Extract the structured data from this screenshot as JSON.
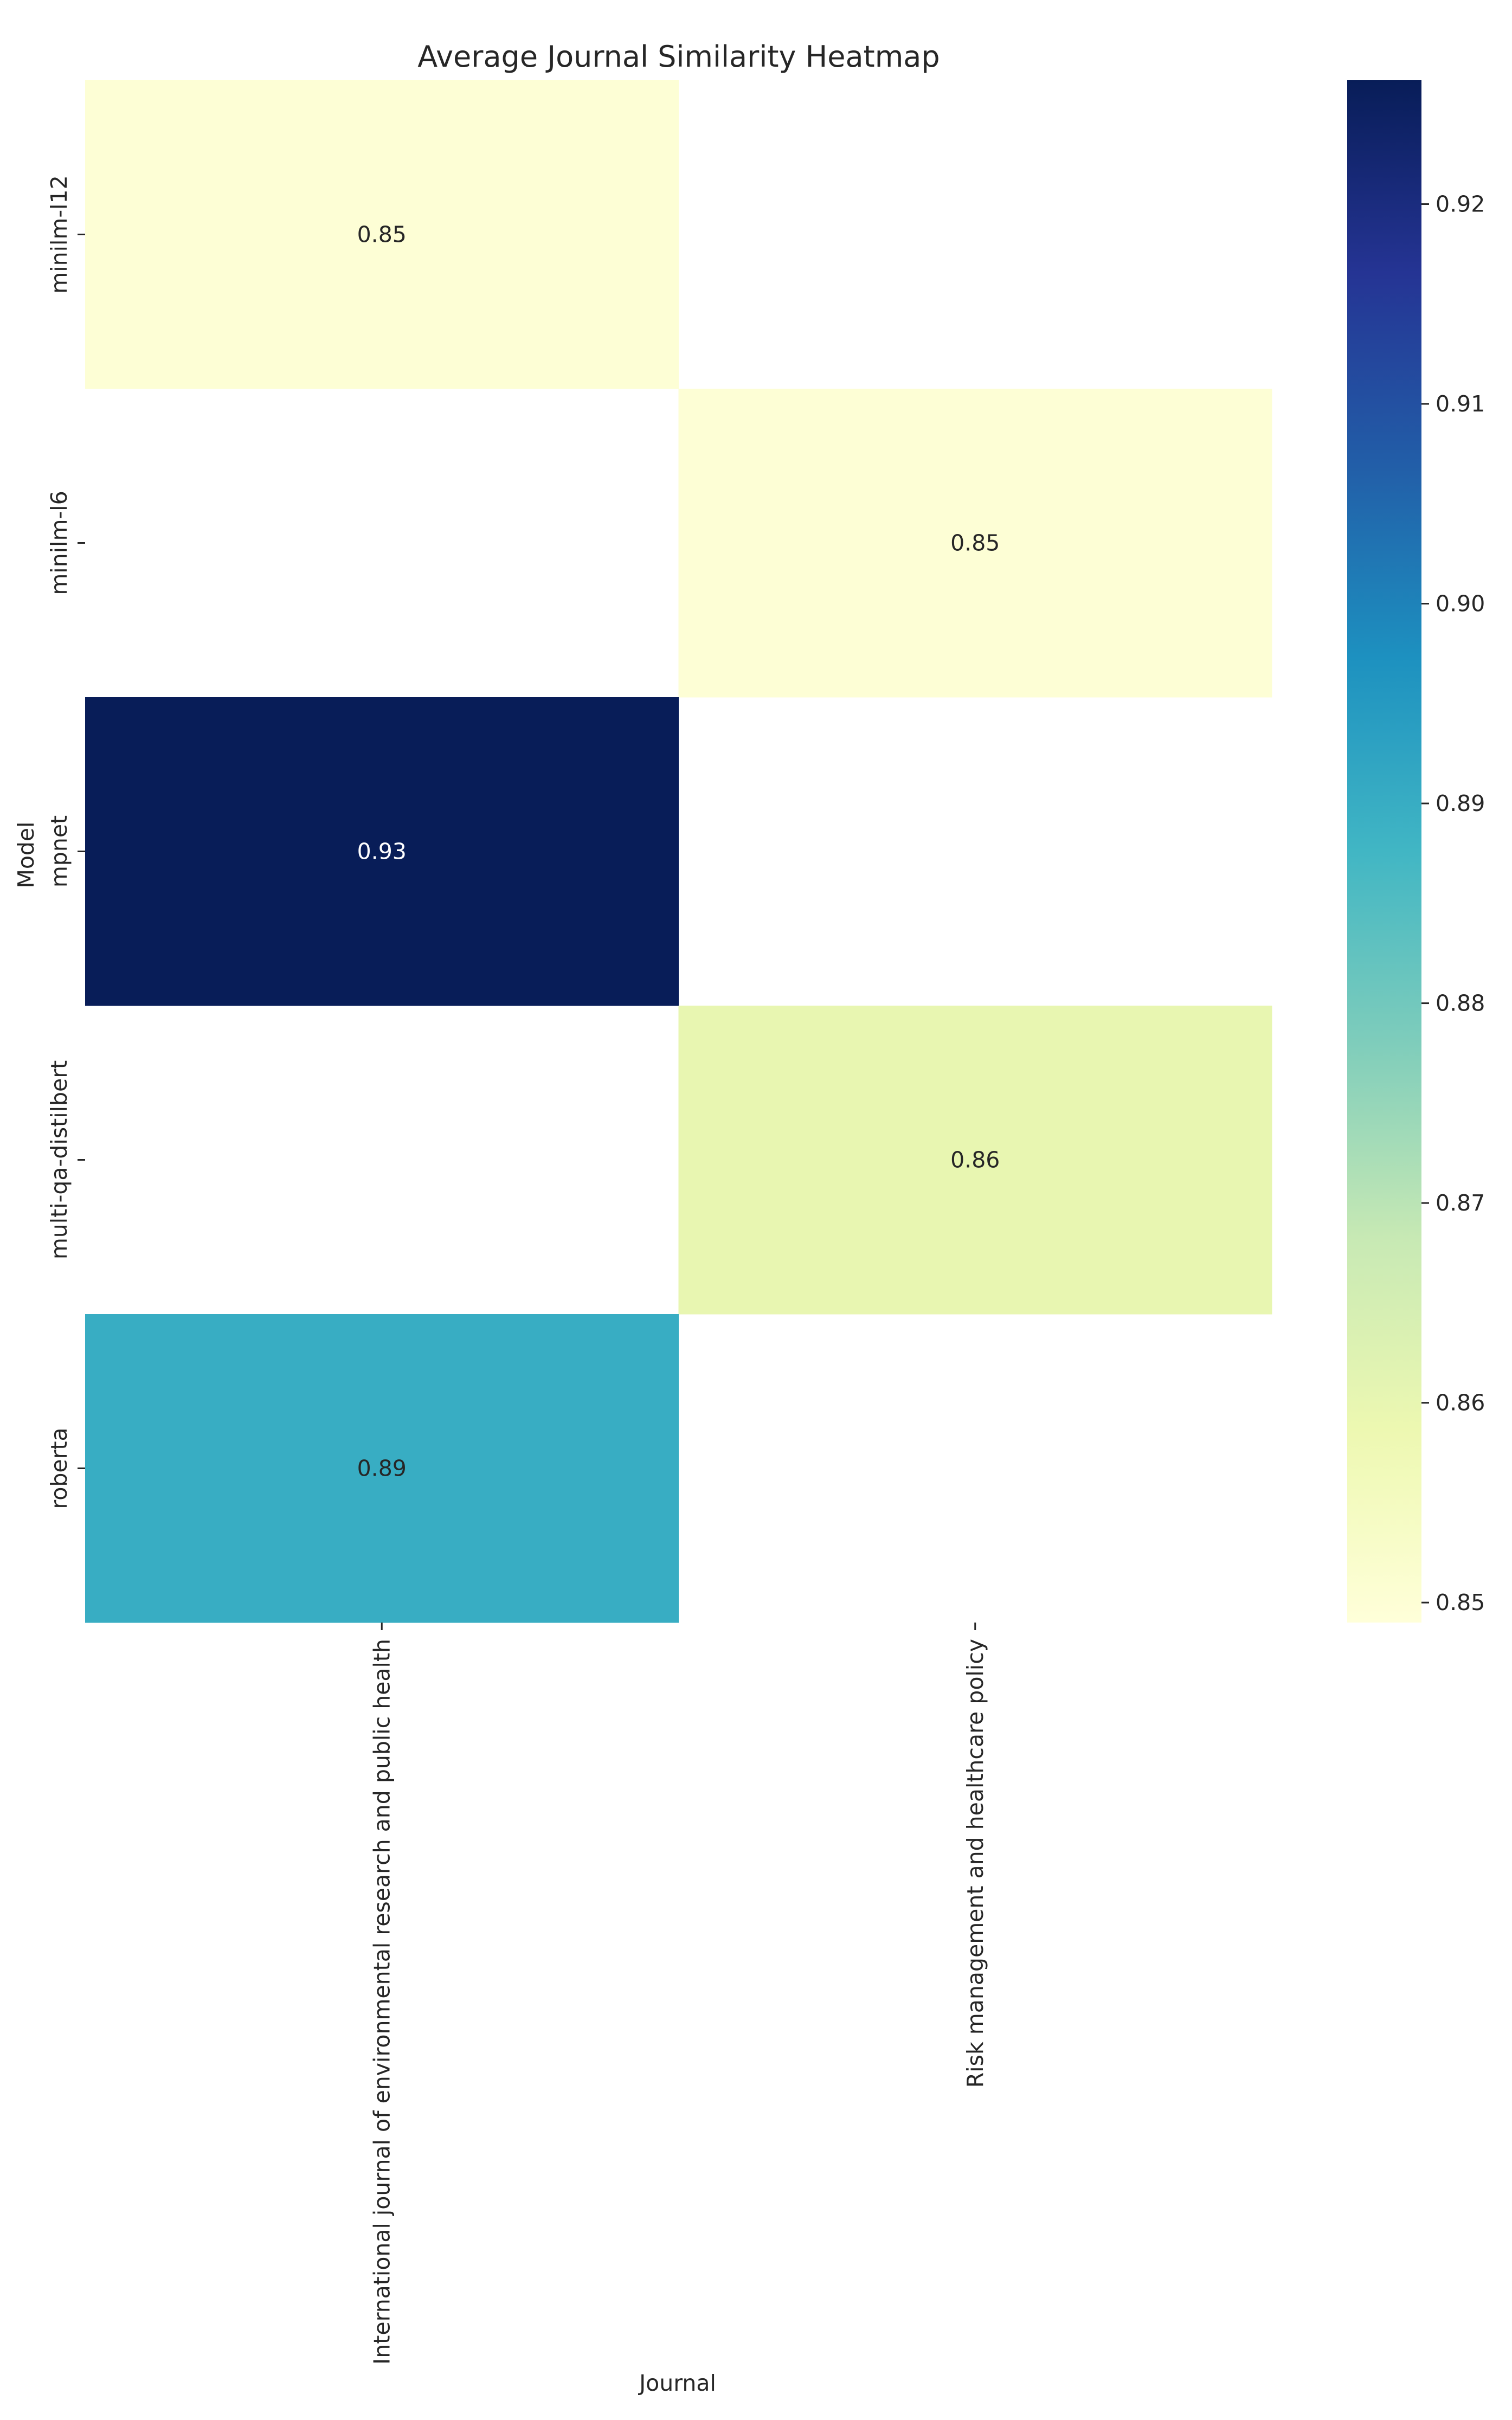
{
  "chart_data": {
    "type": "heatmap",
    "title": "Average Journal Similarity Heatmap",
    "xlabel": "Journal",
    "ylabel": "Model",
    "columns": [
      "International journal of environmental research and public health",
      "Risk management and healthcare policy"
    ],
    "rows": [
      "minilm-l12",
      "minilm-l6",
      "mpnet",
      "multi-qa-distilbert",
      "roberta"
    ],
    "values": [
      [
        0.85,
        null
      ],
      [
        null,
        0.85
      ],
      [
        0.93,
        null
      ],
      [
        null,
        0.86
      ],
      [
        0.89,
        null
      ]
    ],
    "value_range": [
      0.849,
      0.9262
    ],
    "colorbar": {
      "colormap": "YlGnBu",
      "ticks": [
        0.85,
        0.86,
        0.87,
        0.88,
        0.89,
        0.9,
        0.91,
        0.92
      ],
      "tick_labels": [
        "0.85",
        "0.86",
        "0.87",
        "0.88",
        "0.89",
        "0.90",
        "0.91",
        "0.92"
      ]
    },
    "grid": false
  }
}
